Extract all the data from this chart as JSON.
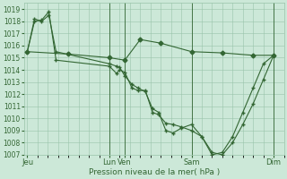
{
  "bg_color": "#cce8d8",
  "grid_color": "#99c4aa",
  "line_color": "#336633",
  "xlabel": "Pression niveau de la mer( hPa )",
  "ylim": [
    1007,
    1019.5
  ],
  "yticks": [
    1007,
    1008,
    1009,
    1010,
    1011,
    1012,
    1013,
    1014,
    1015,
    1016,
    1017,
    1018,
    1019
  ],
  "day_labels": [
    "Jeu",
    "Lun",
    "Ven",
    "Sam",
    "Dim"
  ],
  "day_positions": [
    0,
    8.0,
    9.5,
    16.0,
    24.0
  ],
  "xlim": [
    -0.3,
    25.0
  ],
  "vline_positions": [
    8.0,
    9.5,
    16.0,
    24.0
  ],
  "series_flat_x": [
    0,
    4,
    8.0,
    9.5,
    11,
    13,
    16.0,
    19,
    22,
    24.0
  ],
  "series_flat_y": [
    1015.5,
    1015.3,
    1015.0,
    1014.8,
    1016.5,
    1016.2,
    1015.5,
    1015.4,
    1015.2,
    1015.2
  ],
  "series1_x": [
    0,
    0.7,
    1.4,
    2.1,
    2.8,
    8.0,
    8.7,
    9.0,
    9.5,
    10.2,
    10.8,
    11.5,
    12.2,
    12.8,
    13.5,
    14.2,
    15.0,
    16.0,
    17.0,
    18.0,
    19.0,
    20.0,
    21.0,
    22.0,
    23.0,
    24.0
  ],
  "series1_y": [
    1015.5,
    1018.0,
    1018.1,
    1018.8,
    1014.8,
    1014.3,
    1013.7,
    1014.0,
    1013.8,
    1012.5,
    1012.3,
    1012.3,
    1010.5,
    1010.3,
    1009.6,
    1009.5,
    1009.3,
    1009.0,
    1008.5,
    1007.2,
    1007.0,
    1008.0,
    1009.5,
    1011.2,
    1013.2,
    1015.2
  ],
  "series2_x": [
    0,
    0.7,
    1.4,
    2.1,
    2.8,
    8.0,
    8.7,
    9.0,
    9.5,
    10.2,
    10.8,
    11.5,
    12.2,
    12.8,
    13.5,
    14.2,
    15.0,
    16.0,
    17.0,
    18.0,
    19.0,
    20.0,
    21.0,
    22.0,
    23.0,
    24.0
  ],
  "series2_y": [
    1015.5,
    1018.2,
    1018.0,
    1018.5,
    1015.5,
    1014.5,
    1014.3,
    1014.2,
    1013.5,
    1012.8,
    1012.5,
    1012.2,
    1010.8,
    1010.5,
    1009.0,
    1008.8,
    1009.2,
    1009.5,
    1008.5,
    1007.0,
    1007.2,
    1008.5,
    1010.5,
    1012.5,
    1014.5,
    1015.2
  ]
}
